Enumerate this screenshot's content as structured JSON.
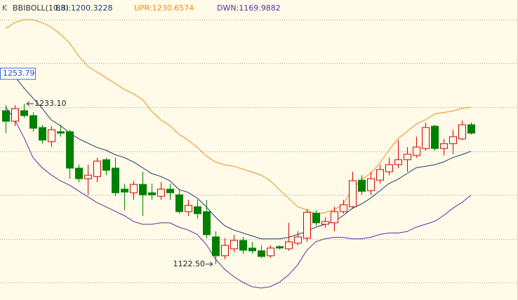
{
  "chart_data": {
    "type": "candlestick",
    "k_label": "K",
    "title": "BBIBOLL(10,3)",
    "ylim": [
      1097.8,
      1304.6
    ],
    "up_color": "#d40000",
    "down_color": "#008000",
    "open": [
      1228.3,
      1221.0,
      1228.3,
      1224.9,
      1216.7,
      1207.0,
      1213.8,
      1213.8,
      1188.7,
      1181.4,
      1182.9,
      1194.5,
      1188.7,
      1174.2,
      1171.7,
      1177.5,
      1171.7,
      1169.3,
      1174.2,
      1170.3,
      1158.7,
      1162.1,
      1158.7,
      1141.3,
      1128.3,
      1133.1,
      1138.9,
      1133.6,
      1131.7,
      1128.3,
      1134.6,
      1133.1,
      1137.0,
      1140.4,
      1157.7,
      1150.0,
      1151.0,
      1158.7,
      1162.1,
      1180.4,
      1173.2,
      1180.4,
      1186.2,
      1191.1,
      1194.5,
      1197.4,
      1202.2,
      1217.6,
      1202.2,
      1205.6,
      1208.9,
      1218.6
    ],
    "high": [
      1232.1,
      1232.1,
      1233.1,
      1227.3,
      1218.6,
      1217.6,
      1218.6,
      1215.2,
      1191.1,
      1191.1,
      1195.9,
      1195.9,
      1195.9,
      1178.0,
      1180.0,
      1186.2,
      1178.0,
      1179.0,
      1178.0,
      1174.2,
      1166.9,
      1166.9,
      1166.9,
      1145.2,
      1140.4,
      1142.8,
      1141.3,
      1137.9,
      1135.5,
      1135.5,
      1135.5,
      1151.0,
      1145.2,
      1160.6,
      1159.7,
      1154.8,
      1162.1,
      1166.9,
      1186.2,
      1183.8,
      1186.2,
      1191.1,
      1195.9,
      1208.0,
      1203.2,
      1210.4,
      1220.1,
      1218.6,
      1208.9,
      1215.2,
      1221.5,
      1220.1
    ],
    "low": [
      1212.8,
      1217.6,
      1223.4,
      1213.8,
      1205.6,
      1203.2,
      1210.4,
      1181.4,
      1179.0,
      1170.3,
      1179.0,
      1183.8,
      1169.3,
      1159.7,
      1166.9,
      1155.8,
      1166.9,
      1166.9,
      1166.9,
      1157.3,
      1155.8,
      1153.9,
      1140.4,
      1122.5,
      1125.9,
      1130.7,
      1129.7,
      1129.7,
      1126.8,
      1126.8,
      1132.6,
      1131.7,
      1135.5,
      1137.9,
      1149.0,
      1147.6,
      1145.2,
      1157.3,
      1160.6,
      1170.3,
      1170.3,
      1178.0,
      1183.8,
      1188.7,
      1186.2,
      1195.9,
      1200.7,
      1200.7,
      1197.4,
      1198.3,
      1208.0,
      1211.8
    ],
    "close": [
      1221.0,
      1229.7,
      1224.9,
      1216.2,
      1208.0,
      1215.2,
      1212.8,
      1188.7,
      1181.4,
      1183.8,
      1193.5,
      1187.2,
      1171.7,
      1172.2,
      1177.5,
      1170.3,
      1170.3,
      1174.2,
      1171.7,
      1158.7,
      1163.0,
      1157.3,
      1142.8,
      1128.3,
      1135.5,
      1138.9,
      1132.1,
      1131.7,
      1127.8,
      1133.6,
      1133.6,
      1137.9,
      1141.3,
      1158.2,
      1151.0,
      1151.9,
      1158.7,
      1163.5,
      1180.0,
      1172.7,
      1181.4,
      1187.7,
      1191.1,
      1194.5,
      1198.3,
      1203.2,
      1216.7,
      1202.2,
      1205.6,
      1210.4,
      1218.6,
      1212.8
    ],
    "series": [
      {
        "label": "BBI:1200.3228",
        "color": "#1f3a6e",
        "values": [
          1256,
          1252,
          1244,
          1237,
          1230,
          1222,
          1218,
          1213,
          1209,
          1206,
          1203,
          1201,
          1198,
          1196,
          1193,
          1189,
          1185,
          1183,
          1180,
          1174,
          1172,
          1168,
          1162,
          1155,
          1149,
          1146,
          1144,
          1142,
          1140,
          1140,
          1140,
          1141,
          1143,
          1145,
          1148,
          1150,
          1152,
          1156,
          1161,
          1164,
          1168,
          1173,
          1178,
          1181,
          1185,
          1189,
          1190,
          1191,
          1193,
          1196,
          1198,
          1200.3228
        ]
      },
      {
        "label": "UPR:1230.6574",
        "color": "#f08c1e",
        "values": [
          1285,
          1289,
          1291,
          1291,
          1289,
          1286,
          1281,
          1275,
          1266,
          1259,
          1255,
          1251,
          1247,
          1243,
          1240,
          1236,
          1228,
          1222,
          1218,
          1212,
          1208,
          1203,
          1197,
          1193,
          1191,
          1190,
          1188,
          1186,
          1184,
          1180,
          1174,
          1168,
          1162,
          1160,
          1157,
          1158,
          1160,
          1164,
          1174,
          1181,
          1185,
          1192,
          1201,
          1209,
          1214,
          1219,
          1222,
          1226,
          1227,
          1228,
          1230,
          1230.6574
        ]
      },
      {
        "label": "DWN:1169.9882",
        "color": "#5a2ca8",
        "values": [
          1231,
          1222,
          1210,
          1196,
          1189,
          1184,
          1180,
          1177,
          1173,
          1169,
          1165,
          1162,
          1159,
          1156,
          1152,
          1150,
          1150,
          1151,
          1151,
          1148,
          1146,
          1143,
          1136,
          1126,
          1119,
          1114,
          1110,
          1107,
          1106,
          1107,
          1110,
          1115,
          1122,
          1132,
          1138,
          1140,
          1141,
          1141,
          1140,
          1140,
          1141,
          1143,
          1144,
          1144,
          1145,
          1148,
          1150,
          1152,
          1156,
          1161,
          1165,
          1169.9882
        ]
      }
    ],
    "price_label": {
      "value": 1253.79,
      "label": "1253.79"
    },
    "high_label": {
      "value": 1233.1,
      "label": "1233.10"
    },
    "low_label": {
      "value": 1122.5,
      "label": "1122.50"
    }
  }
}
